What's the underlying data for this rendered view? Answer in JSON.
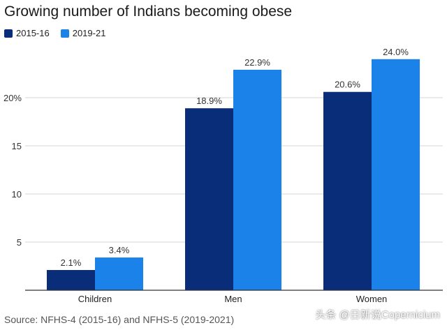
{
  "chart_data": {
    "type": "bar",
    "title": "Growing number of Indians becoming obese",
    "categories": [
      "Children",
      "Men",
      "Women"
    ],
    "series": [
      {
        "name": "2015-16",
        "values": [
          2.1,
          18.9,
          20.6
        ],
        "labels": [
          "2.1%",
          "18.9%",
          "20.6%"
        ],
        "color": "#0a2d7a"
      },
      {
        "name": "2019-21",
        "values": [
          3.4,
          22.9,
          24.0
        ],
        "labels": [
          "3.4%",
          "22.9%",
          "24.0%"
        ],
        "color": "#1a82e8"
      }
    ],
    "yticks": [
      5,
      10,
      15,
      20
    ],
    "ytick_labels": [
      "5",
      "10",
      "15",
      "20%"
    ],
    "ylim": [
      0,
      25
    ],
    "xlabel": "",
    "ylabel": "",
    "grid": true,
    "legend": "top-left"
  },
  "source": "Source: NFHS-4 (2015-16) and NFHS-5 (2019-2021)",
  "watermark": "头条 @日新说Copernicium"
}
